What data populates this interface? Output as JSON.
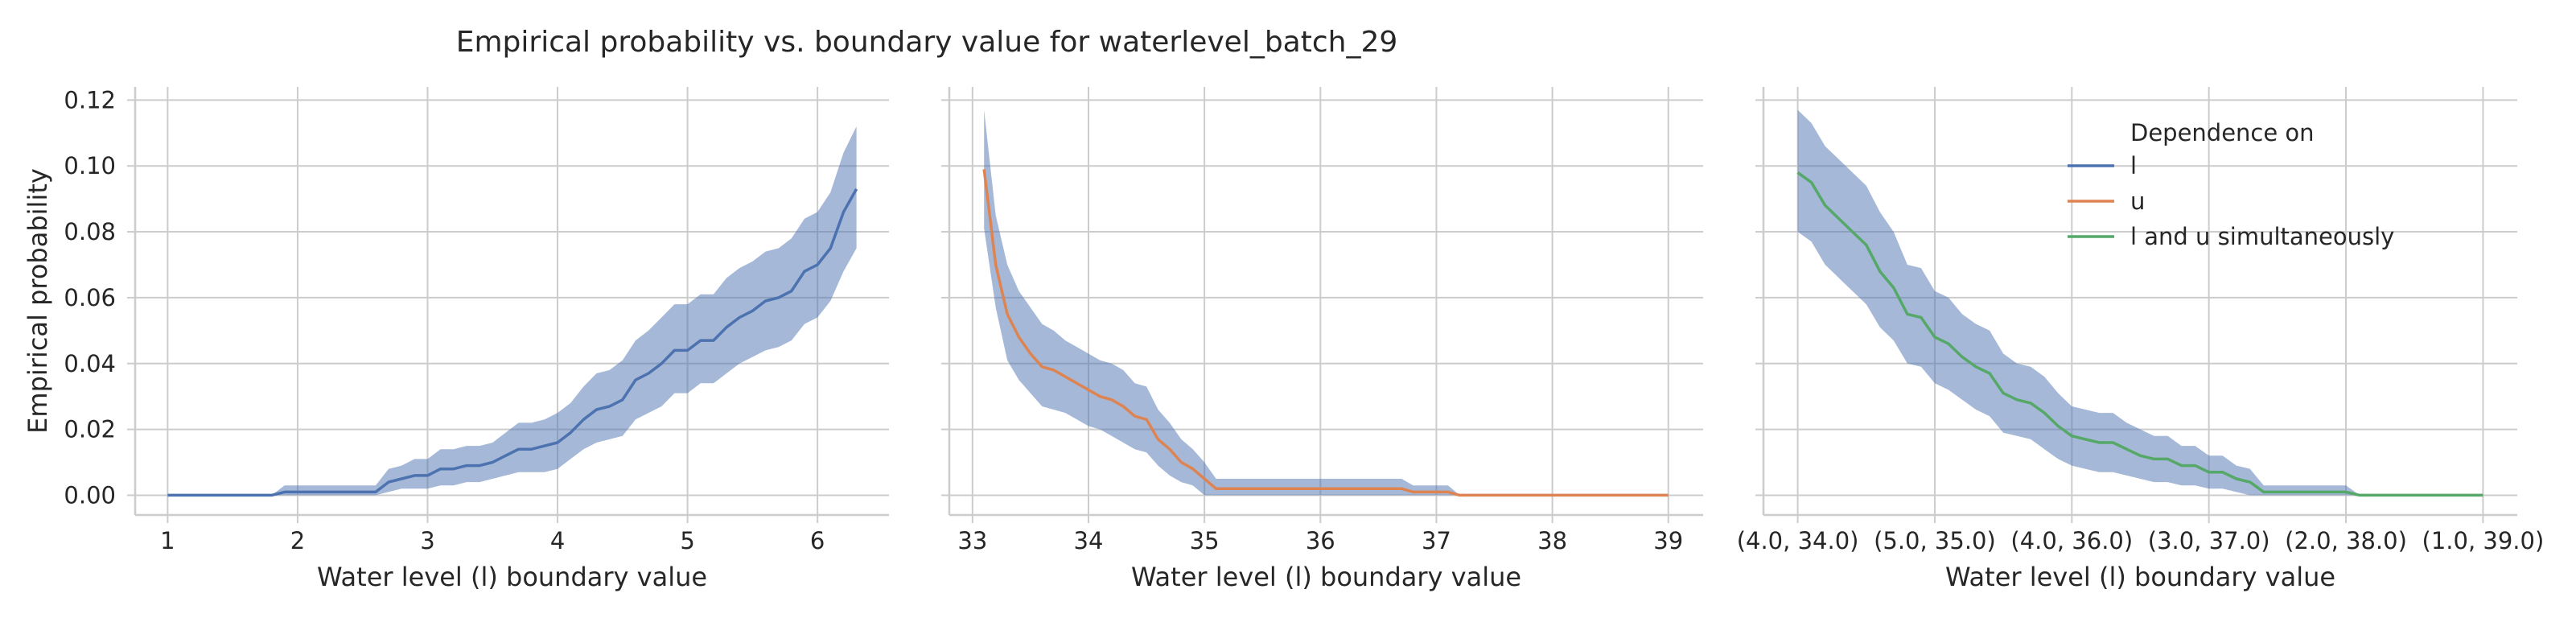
{
  "figure": {
    "title": "Empirical probability vs. boundary value for waterlevel_batch_29"
  },
  "legend": {
    "title": "Dependence on",
    "placement": "upper-right of third panel"
  },
  "colors": {
    "band": "#4c72b0",
    "line_l": "#4c72b0",
    "line_u": "#dd8452",
    "line_lu": "#55a868",
    "grid": "#cccccc",
    "spine": "#cccccc"
  },
  "chart_data": [
    {
      "type": "line",
      "panel": 1,
      "xlabel": "Water level (l) boundary value",
      "ylabel": "Empirical probability",
      "xlim": [
        0.75,
        6.55
      ],
      "ylim": [
        -0.006,
        0.124
      ],
      "xticks": [
        1,
        2,
        3,
        4,
        5,
        6
      ],
      "xtick_labels": [
        "1",
        "2",
        "3",
        "4",
        "5",
        "6"
      ],
      "yticks": [
        0.0,
        0.02,
        0.04,
        0.06,
        0.08,
        0.1,
        0.12
      ],
      "ytick_labels": [
        "0.00",
        "0.02",
        "0.04",
        "0.06",
        "0.08",
        "0.10",
        "0.12"
      ],
      "grid": true,
      "series": [
        {
          "name": "l",
          "color": "#4c72b0",
          "x": [
            1.0,
            1.1,
            1.2,
            1.3,
            1.4,
            1.5,
            1.6,
            1.7,
            1.8,
            1.9,
            2.0,
            2.1,
            2.2,
            2.3,
            2.4,
            2.5,
            2.6,
            2.7,
            2.8,
            2.9,
            3.0,
            3.1,
            3.2,
            3.3,
            3.4,
            3.5,
            3.6,
            3.7,
            3.8,
            3.9,
            4.0,
            4.1,
            4.2,
            4.3,
            4.4,
            4.5,
            4.6,
            4.7,
            4.8,
            4.9,
            5.0,
            5.1,
            5.2,
            5.3,
            5.4,
            5.5,
            5.6,
            5.7,
            5.8,
            5.9,
            6.0,
            6.1,
            6.2,
            6.3
          ],
          "y": [
            0.0,
            0.0,
            0.0,
            0.0,
            0.0,
            0.0,
            0.0,
            0.0,
            0.0,
            0.001,
            0.001,
            0.001,
            0.001,
            0.001,
            0.001,
            0.001,
            0.001,
            0.004,
            0.005,
            0.006,
            0.006,
            0.008,
            0.008,
            0.009,
            0.009,
            0.01,
            0.012,
            0.014,
            0.014,
            0.015,
            0.016,
            0.019,
            0.023,
            0.026,
            0.027,
            0.029,
            0.035,
            0.037,
            0.04,
            0.044,
            0.044,
            0.047,
            0.047,
            0.051,
            0.054,
            0.056,
            0.059,
            0.06,
            0.062,
            0.068,
            0.07,
            0.075,
            0.086,
            0.093
          ],
          "ci_lower": [
            0.0,
            0.0,
            0.0,
            0.0,
            0.0,
            0.0,
            0.0,
            0.0,
            0.0,
            0.0,
            0.0,
            0.0,
            0.0,
            0.0,
            0.0,
            0.0,
            0.0,
            0.001,
            0.002,
            0.002,
            0.002,
            0.003,
            0.003,
            0.004,
            0.004,
            0.005,
            0.006,
            0.007,
            0.007,
            0.007,
            0.008,
            0.011,
            0.014,
            0.016,
            0.017,
            0.018,
            0.023,
            0.025,
            0.027,
            0.031,
            0.031,
            0.034,
            0.034,
            0.037,
            0.04,
            0.042,
            0.044,
            0.045,
            0.047,
            0.052,
            0.054,
            0.059,
            0.068,
            0.075
          ],
          "ci_upper": [
            0.0,
            0.0,
            0.0,
            0.0,
            0.0,
            0.0,
            0.0,
            0.0,
            0.0,
            0.003,
            0.003,
            0.003,
            0.003,
            0.003,
            0.003,
            0.003,
            0.003,
            0.008,
            0.009,
            0.011,
            0.011,
            0.014,
            0.014,
            0.015,
            0.015,
            0.016,
            0.019,
            0.022,
            0.022,
            0.023,
            0.025,
            0.028,
            0.033,
            0.037,
            0.038,
            0.041,
            0.047,
            0.05,
            0.054,
            0.058,
            0.058,
            0.061,
            0.061,
            0.066,
            0.069,
            0.071,
            0.074,
            0.075,
            0.078,
            0.084,
            0.086,
            0.092,
            0.104,
            0.112
          ]
        }
      ]
    },
    {
      "type": "line",
      "panel": 2,
      "xlabel": "Water level (l) boundary value",
      "ylabel": "",
      "xlim": [
        32.8,
        39.3
      ],
      "ylim": [
        -0.006,
        0.124
      ],
      "xticks": [
        33,
        34,
        35,
        36,
        37,
        38,
        39
      ],
      "xtick_labels": [
        "33",
        "34",
        "35",
        "36",
        "37",
        "38",
        "39"
      ],
      "grid": true,
      "series": [
        {
          "name": "u",
          "color": "#dd8452",
          "x": [
            33.1,
            33.2,
            33.3,
            33.4,
            33.5,
            33.6,
            33.7,
            33.8,
            33.9,
            34.0,
            34.1,
            34.2,
            34.3,
            34.4,
            34.5,
            34.6,
            34.7,
            34.8,
            34.9,
            35.0,
            35.1,
            35.5,
            36.0,
            36.5,
            36.7,
            36.8,
            37.0,
            37.1,
            37.2,
            37.5,
            38.0,
            38.5,
            39.0
          ],
          "y": [
            0.099,
            0.07,
            0.055,
            0.048,
            0.043,
            0.039,
            0.038,
            0.036,
            0.034,
            0.032,
            0.03,
            0.029,
            0.027,
            0.024,
            0.023,
            0.017,
            0.014,
            0.01,
            0.008,
            0.005,
            0.002,
            0.002,
            0.002,
            0.002,
            0.002,
            0.001,
            0.001,
            0.001,
            0.0,
            0.0,
            0.0,
            0.0,
            0.0
          ],
          "ci_lower": [
            0.081,
            0.057,
            0.041,
            0.035,
            0.031,
            0.027,
            0.026,
            0.025,
            0.023,
            0.021,
            0.02,
            0.018,
            0.016,
            0.014,
            0.013,
            0.009,
            0.006,
            0.004,
            0.003,
            0.0,
            0.0,
            0.0,
            0.0,
            0.0,
            0.0,
            0.0,
            0.0,
            0.0,
            0.0,
            0.0,
            0.0,
            0.0,
            0.0
          ],
          "ci_upper": [
            0.117,
            0.085,
            0.07,
            0.062,
            0.057,
            0.052,
            0.05,
            0.047,
            0.045,
            0.043,
            0.041,
            0.04,
            0.038,
            0.034,
            0.033,
            0.026,
            0.022,
            0.017,
            0.014,
            0.01,
            0.005,
            0.005,
            0.005,
            0.005,
            0.005,
            0.003,
            0.003,
            0.003,
            0.0,
            0.0,
            0.0,
            0.0,
            0.0
          ]
        }
      ]
    },
    {
      "type": "line",
      "panel": 3,
      "xlabel": "Water level (l) boundary value",
      "ylabel": "",
      "xlim": [
        -2.5,
        52.5
      ],
      "ylim": [
        -0.006,
        0.124
      ],
      "xticks": [
        0,
        10,
        20,
        30,
        40,
        50
      ],
      "xtick_labels": [
        "(4.0, 34.0)",
        "(5.0, 35.0)",
        "(4.0, 36.0)",
        "(3.0, 37.0)",
        "(2.0, 38.0)",
        "(1.0, 39.0)"
      ],
      "grid": true,
      "series": [
        {
          "name": "l and u simultaneously",
          "color": "#55a868",
          "x": [
            0,
            1,
            2,
            3,
            4,
            5,
            6,
            7,
            8,
            9,
            10,
            11,
            12,
            13,
            14,
            15,
            16,
            17,
            18,
            19,
            20,
            21,
            22,
            23,
            24,
            25,
            26,
            27,
            28,
            29,
            30,
            31,
            32,
            33,
            34,
            35,
            36,
            37,
            38,
            39,
            40,
            41,
            42,
            43,
            44,
            45,
            46,
            47,
            48,
            49,
            50
          ],
          "y": [
            0.098,
            0.095,
            0.088,
            0.084,
            0.08,
            0.076,
            0.068,
            0.063,
            0.055,
            0.054,
            0.048,
            0.046,
            0.042,
            0.039,
            0.037,
            0.031,
            0.029,
            0.028,
            0.025,
            0.021,
            0.018,
            0.017,
            0.016,
            0.016,
            0.014,
            0.012,
            0.011,
            0.011,
            0.009,
            0.009,
            0.007,
            0.007,
            0.005,
            0.004,
            0.001,
            0.001,
            0.001,
            0.001,
            0.001,
            0.001,
            0.001,
            0.0,
            0.0,
            0.0,
            0.0,
            0.0,
            0.0,
            0.0,
            0.0,
            0.0,
            0.0
          ],
          "ci_lower": [
            0.08,
            0.077,
            0.07,
            0.066,
            0.062,
            0.058,
            0.051,
            0.047,
            0.04,
            0.039,
            0.034,
            0.032,
            0.029,
            0.026,
            0.024,
            0.019,
            0.018,
            0.017,
            0.014,
            0.011,
            0.009,
            0.008,
            0.007,
            0.007,
            0.006,
            0.005,
            0.004,
            0.004,
            0.003,
            0.003,
            0.002,
            0.002,
            0.001,
            0.0,
            0.0,
            0.0,
            0.0,
            0.0,
            0.0,
            0.0,
            0.0,
            0.0,
            0.0,
            0.0,
            0.0,
            0.0,
            0.0,
            0.0,
            0.0,
            0.0,
            0.0
          ],
          "ci_upper": [
            0.117,
            0.113,
            0.106,
            0.102,
            0.098,
            0.094,
            0.086,
            0.08,
            0.07,
            0.069,
            0.062,
            0.06,
            0.055,
            0.052,
            0.05,
            0.043,
            0.04,
            0.039,
            0.036,
            0.031,
            0.027,
            0.026,
            0.025,
            0.025,
            0.022,
            0.02,
            0.018,
            0.018,
            0.015,
            0.015,
            0.012,
            0.012,
            0.009,
            0.008,
            0.003,
            0.003,
            0.003,
            0.003,
            0.003,
            0.003,
            0.003,
            0.0,
            0.0,
            0.0,
            0.0,
            0.0,
            0.0,
            0.0,
            0.0,
            0.0,
            0.0
          ]
        }
      ]
    }
  ]
}
